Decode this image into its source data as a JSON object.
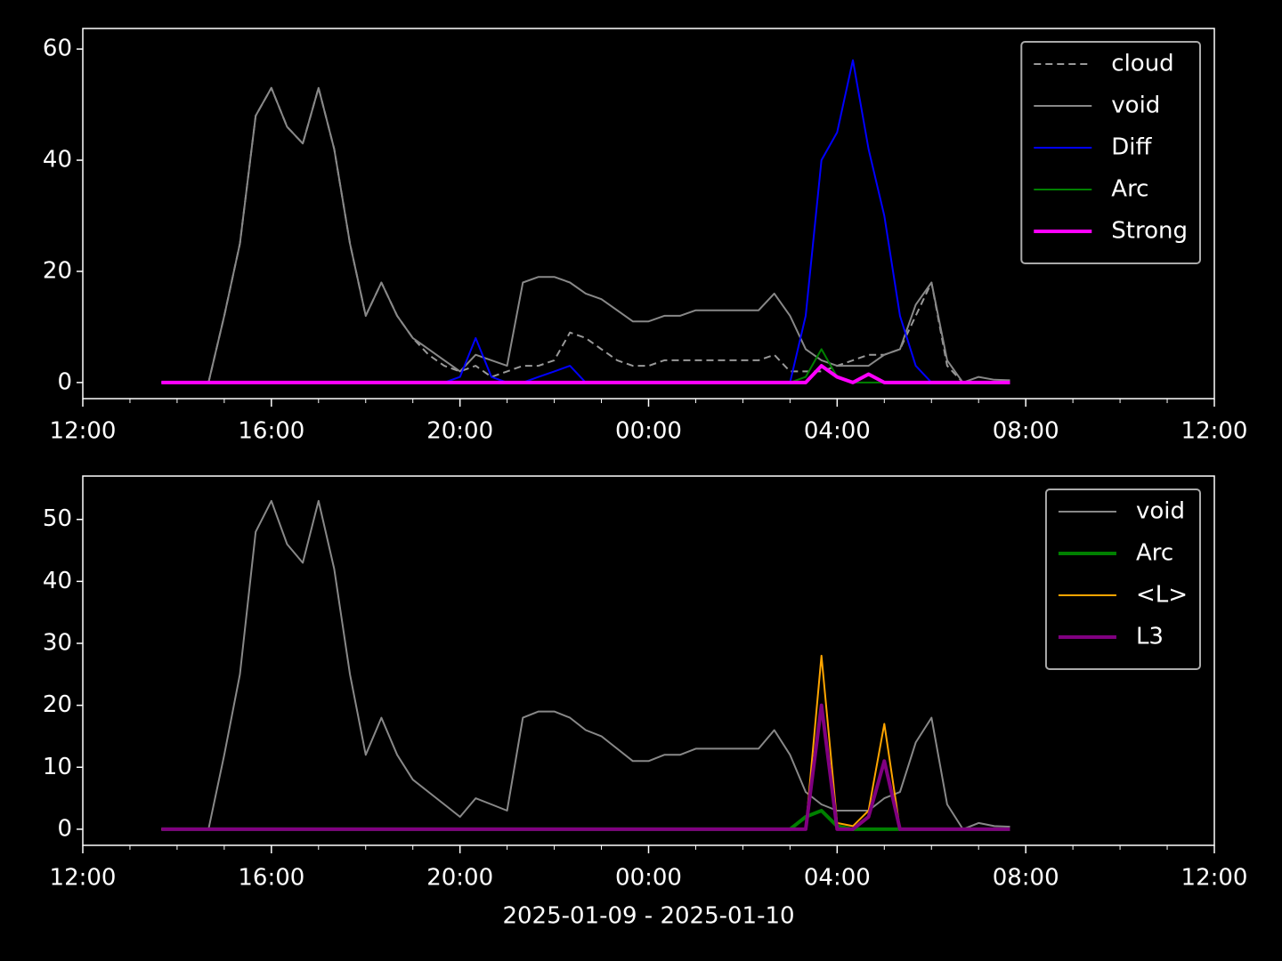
{
  "chart_data": [
    {
      "type": "line",
      "x": [
        "13:40",
        "14:00",
        "14:20",
        "14:40",
        "15:00",
        "15:20",
        "15:40",
        "16:00",
        "16:20",
        "16:40",
        "17:00",
        "17:20",
        "17:40",
        "18:00",
        "18:20",
        "18:40",
        "19:00",
        "19:20",
        "19:40",
        "20:00",
        "20:20",
        "20:40",
        "21:00",
        "21:20",
        "21:40",
        "22:00",
        "22:20",
        "22:40",
        "23:00",
        "23:20",
        "23:40",
        "00:00",
        "00:20",
        "00:40",
        "01:00",
        "01:20",
        "01:40",
        "02:00",
        "02:20",
        "02:40",
        "03:00",
        "03:20",
        "03:40",
        "04:00",
        "04:20",
        "04:40",
        "05:00",
        "05:20",
        "05:40",
        "06:00",
        "06:20",
        "06:40",
        "07:00",
        "07:20",
        "07:40"
      ],
      "series": [
        {
          "name": "cloud",
          "color": "#999999",
          "dash": true,
          "width": 2,
          "values": [
            0,
            0,
            0,
            0,
            12,
            25,
            48,
            53,
            46,
            43,
            53,
            42,
            25,
            12,
            18,
            12,
            8,
            5,
            3,
            2,
            3,
            1,
            2,
            3,
            3,
            4,
            9,
            8,
            6,
            4,
            3,
            3,
            4,
            4,
            4,
            4,
            4,
            4,
            4,
            5,
            2,
            2,
            2,
            3,
            4,
            5,
            5,
            6,
            12,
            18,
            3,
            0,
            0,
            0,
            0
          ]
        },
        {
          "name": "void",
          "color": "#888888",
          "width": 2,
          "values": [
            0,
            0,
            0,
            0,
            12,
            25,
            48,
            53,
            46,
            43,
            53,
            42,
            25,
            12,
            18,
            12,
            8,
            6,
            4,
            2,
            5,
            4,
            3,
            18,
            19,
            19,
            18,
            16,
            15,
            13,
            11,
            11,
            12,
            12,
            13,
            13,
            13,
            13,
            13,
            16,
            12,
            6,
            4,
            3,
            3,
            3,
            5,
            6,
            14,
            18,
            4,
            0,
            1,
            0.5,
            0.4
          ]
        },
        {
          "name": "Diff",
          "color": "#0000ff",
          "width": 2,
          "values": [
            0,
            0,
            0,
            0,
            0,
            0,
            0,
            0,
            0,
            0,
            0,
            0,
            0,
            0,
            0,
            0,
            0,
            0,
            0,
            1,
            8,
            1,
            0,
            0,
            1,
            2,
            3,
            0,
            0,
            0,
            0,
            0,
            0,
            0,
            0,
            0,
            0,
            0,
            0,
            0,
            0,
            12,
            40,
            45,
            58,
            42,
            30,
            12,
            3,
            0,
            0,
            0,
            0,
            0,
            0
          ]
        },
        {
          "name": "Arc",
          "color": "#008000",
          "width": 2,
          "values": [
            0,
            0,
            0,
            0,
            0,
            0,
            0,
            0,
            0,
            0,
            0,
            0,
            0,
            0,
            0,
            0,
            0,
            0,
            0,
            0,
            0,
            0,
            0,
            0,
            0,
            0,
            0,
            0,
            0,
            0,
            0,
            0,
            0,
            0,
            0,
            0,
            0,
            0,
            0,
            0,
            0,
            1,
            6,
            1,
            0,
            0,
            0,
            0,
            0,
            0,
            0,
            0,
            0,
            0,
            0
          ]
        },
        {
          "name": "Strong",
          "color": "#ff00ff",
          "width": 4,
          "values": [
            0,
            0,
            0,
            0,
            0,
            0,
            0,
            0,
            0,
            0,
            0,
            0,
            0,
            0,
            0,
            0,
            0,
            0,
            0,
            0,
            0,
            0,
            0,
            0,
            0,
            0,
            0,
            0,
            0,
            0,
            0,
            0,
            0,
            0,
            0,
            0,
            0,
            0,
            0,
            0,
            0,
            0,
            3,
            1,
            0,
            1.5,
            0,
            0,
            0,
            0,
            0,
            0,
            0,
            0,
            0
          ]
        }
      ],
      "xlim": [
        "12:00",
        "12:00"
      ],
      "xticks": [
        "12:00",
        "16:00",
        "20:00",
        "00:00",
        "04:00",
        "08:00",
        "12:00"
      ],
      "ylim": [
        -2.9,
        63.7
      ],
      "yticks": [
        0,
        20,
        40,
        60
      ],
      "legend": "upper right"
    },
    {
      "type": "line",
      "x": [
        "13:40",
        "14:00",
        "14:20",
        "14:40",
        "15:00",
        "15:20",
        "15:40",
        "16:00",
        "16:20",
        "16:40",
        "17:00",
        "17:20",
        "17:40",
        "18:00",
        "18:20",
        "18:40",
        "19:00",
        "19:20",
        "19:40",
        "20:00",
        "20:20",
        "20:40",
        "21:00",
        "21:20",
        "21:40",
        "22:00",
        "22:20",
        "22:40",
        "23:00",
        "23:20",
        "23:40",
        "00:00",
        "00:20",
        "00:40",
        "01:00",
        "01:20",
        "01:40",
        "02:00",
        "02:20",
        "02:40",
        "03:00",
        "03:20",
        "03:40",
        "04:00",
        "04:20",
        "04:40",
        "05:00",
        "05:20",
        "05:40",
        "06:00",
        "06:20",
        "06:40",
        "07:00",
        "07:20",
        "07:40"
      ],
      "series": [
        {
          "name": "void",
          "color": "#888888",
          "width": 2,
          "values": [
            0,
            0,
            0,
            0,
            12,
            25,
            48,
            53,
            46,
            43,
            53,
            42,
            25,
            12,
            18,
            12,
            8,
            6,
            4,
            2,
            5,
            4,
            3,
            18,
            19,
            19,
            18,
            16,
            15,
            13,
            11,
            11,
            12,
            12,
            13,
            13,
            13,
            13,
            13,
            16,
            12,
            6,
            4,
            3,
            3,
            3,
            5,
            6,
            14,
            18,
            4,
            0,
            1,
            0.5,
            0.4
          ]
        },
        {
          "name": "Arc",
          "color": "#008000",
          "width": 4,
          "values": [
            0,
            0,
            0,
            0,
            0,
            0,
            0,
            0,
            0,
            0,
            0,
            0,
            0,
            0,
            0,
            0,
            0,
            0,
            0,
            0,
            0,
            0,
            0,
            0,
            0,
            0,
            0,
            0,
            0,
            0,
            0,
            0,
            0,
            0,
            0,
            0,
            0,
            0,
            0,
            0,
            0,
            2,
            3,
            0.5,
            0,
            0,
            0,
            0,
            0,
            0,
            0,
            0,
            0,
            0,
            0
          ]
        },
        {
          "name": "<L>",
          "color": "#ffa500",
          "width": 2,
          "values": [
            0,
            0,
            0,
            0,
            0,
            0,
            0,
            0,
            0,
            0,
            0,
            0,
            0,
            0,
            0,
            0,
            0,
            0,
            0,
            0,
            0,
            0,
            0,
            0,
            0,
            0,
            0,
            0,
            0,
            0,
            0,
            0,
            0,
            0,
            0,
            0,
            0,
            0,
            0,
            0,
            0,
            0,
            28,
            1,
            0.5,
            3,
            17,
            0,
            0,
            0,
            0,
            0,
            0,
            0,
            0
          ]
        },
        {
          "name": "L3",
          "color": "#800080",
          "width": 4,
          "values": [
            0,
            0,
            0,
            0,
            0,
            0,
            0,
            0,
            0,
            0,
            0,
            0,
            0,
            0,
            0,
            0,
            0,
            0,
            0,
            0,
            0,
            0,
            0,
            0,
            0,
            0,
            0,
            0,
            0,
            0,
            0,
            0,
            0,
            0,
            0,
            0,
            0,
            0,
            0,
            0,
            0,
            0,
            20,
            0,
            0,
            2,
            11,
            0,
            0,
            0,
            0,
            0,
            0,
            0,
            0
          ]
        }
      ],
      "xlim": [
        "12:00",
        "12:00"
      ],
      "xticks": [
        "12:00",
        "16:00",
        "20:00",
        "00:00",
        "04:00",
        "08:00",
        "12:00"
      ],
      "ylim": [
        -2.6,
        57.0
      ],
      "yticks": [
        0,
        10,
        20,
        30,
        40,
        50
      ],
      "legend": "upper right",
      "xlabel": "2025-01-09 - 2025-01-10"
    }
  ]
}
